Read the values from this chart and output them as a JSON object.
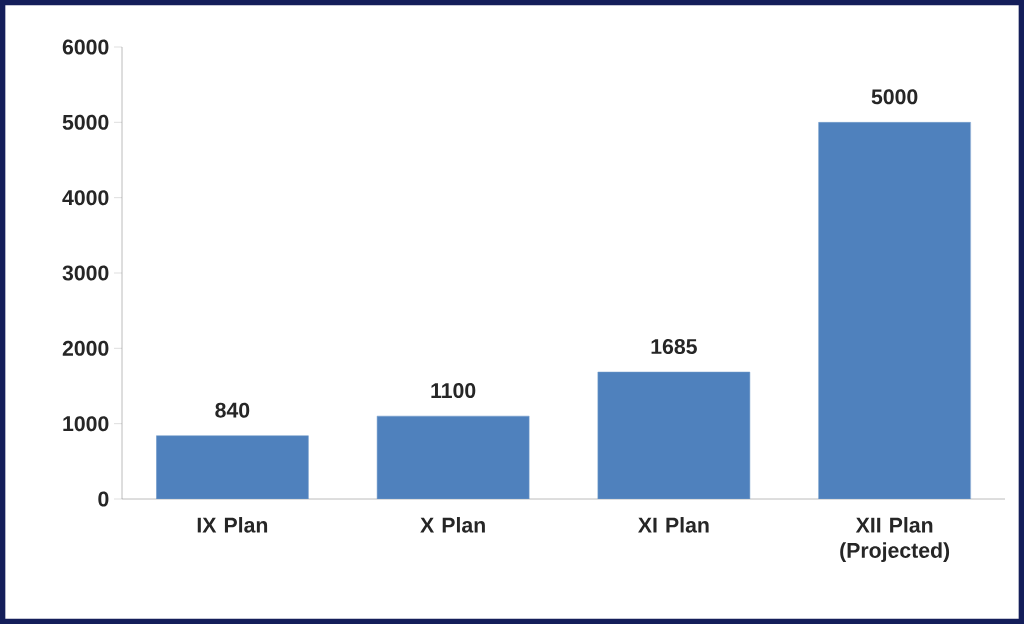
{
  "chart_data": {
    "type": "bar",
    "categories": [
      "IX Plan",
      "X Plan",
      "XI Plan",
      "XII Plan (Projected)"
    ],
    "values": [
      840,
      1100,
      1685,
      5000
    ],
    "value_labels": [
      "840",
      "1100",
      "1685",
      "5000"
    ],
    "color": "#4f81bd",
    "ylim": [
      0,
      6000
    ],
    "yticks": [
      0,
      1000,
      2000,
      3000,
      4000,
      5000,
      6000
    ],
    "grid": false
  }
}
